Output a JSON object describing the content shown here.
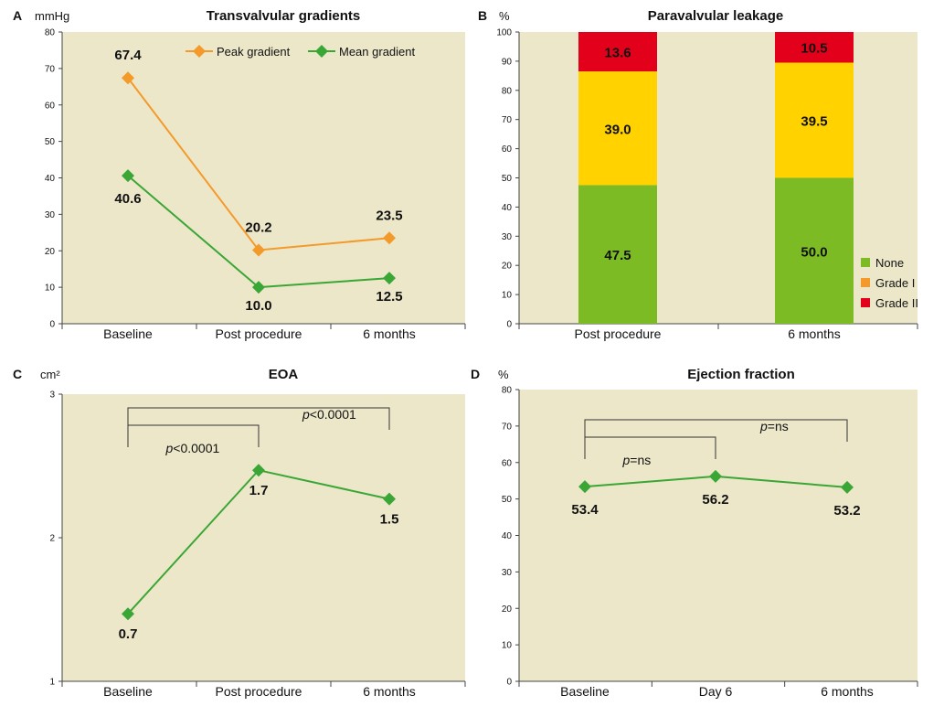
{
  "chart_data": [
    {
      "panel": "A",
      "type": "line",
      "title": "Transvalvular gradients",
      "ylabel": "mmHg",
      "categories": [
        "Baseline",
        "Post procedure",
        "6 months"
      ],
      "ylim": [
        0,
        80
      ],
      "yticks": [
        0,
        10,
        20,
        30,
        40,
        50,
        60,
        70,
        80
      ],
      "series": [
        {
          "name": "Peak gradient",
          "values": [
            67.4,
            20.2,
            23.5
          ],
          "labels": [
            "67.4",
            "20.2",
            "23.5"
          ],
          "color": "#f39a2b"
        },
        {
          "name": "Mean gradient",
          "values": [
            40.6,
            10.0,
            12.5
          ],
          "labels": [
            "40.6",
            "10.0",
            "12.5"
          ],
          "color": "#3aa635"
        }
      ],
      "legend": "top-right",
      "background": "#ece7c9"
    },
    {
      "panel": "B",
      "type": "bar",
      "stacked": true,
      "title": "Paravalvular leakage",
      "ylabel": "%",
      "categories": [
        "Post procedure",
        "6 months"
      ],
      "ylim": [
        0,
        100
      ],
      "yticks": [
        0,
        10,
        20,
        30,
        40,
        50,
        60,
        70,
        80,
        90,
        100
      ],
      "series": [
        {
          "name": "None",
          "values": [
            47.5,
            50.0
          ],
          "labels": [
            "47.5",
            "50.0"
          ],
          "color": "#7dbb24"
        },
        {
          "name": "Grade I",
          "values": [
            39.0,
            39.5
          ],
          "labels": [
            "39.0",
            "39.5"
          ],
          "color": "#ffd200"
        },
        {
          "name": "Grade II",
          "values": [
            13.6,
            10.5
          ],
          "labels": [
            "13.6",
            "10.5"
          ],
          "color": "#e3001b"
        }
      ],
      "legend_colors": [
        "#7dbb24",
        "#f39a2b",
        "#e3001b"
      ],
      "legend": "bottom-right",
      "background": "#ece7c9"
    },
    {
      "panel": "C",
      "type": "line",
      "title": "EOA",
      "ylabel": "cm²",
      "categories": [
        "Baseline",
        "Post procedure",
        "6 months"
      ],
      "ylim": [
        1,
        3
      ],
      "yticks": [
        1,
        2,
        3
      ],
      "series": [
        {
          "name": "",
          "values": [
            0.7,
            1.7,
            1.5
          ],
          "labels": [
            "0.7",
            "1.7",
            "1.5"
          ],
          "color": "#3aa635"
        }
      ],
      "brackets": [
        {
          "from": 0,
          "to": 1,
          "label_prefix": "p",
          "label_rest": "<0.0001",
          "level": "inner"
        },
        {
          "from": 0,
          "to": 2,
          "label_prefix": "p",
          "label_rest": "<0.0001",
          "level": "outer"
        }
      ],
      "background": "#ece7c9"
    },
    {
      "panel": "D",
      "type": "line",
      "title": "Ejection fraction",
      "ylabel": "%",
      "categories": [
        "Baseline",
        "Day 6",
        "6 months"
      ],
      "ylim": [
        0,
        80
      ],
      "yticks": [
        0,
        10,
        20,
        30,
        40,
        50,
        60,
        70,
        80
      ],
      "series": [
        {
          "name": "",
          "values": [
            53.4,
            56.2,
            53.2
          ],
          "labels": [
            "53.4",
            "56.2",
            "53.2"
          ],
          "color": "#3aa635"
        }
      ],
      "brackets": [
        {
          "from": 0,
          "to": 1,
          "label_prefix": "p",
          "label_rest": "=ns",
          "level": "inner"
        },
        {
          "from": 0,
          "to": 2,
          "label_prefix": "p",
          "label_rest": "=ns",
          "level": "outer"
        }
      ],
      "background": "#ece7c9"
    }
  ]
}
